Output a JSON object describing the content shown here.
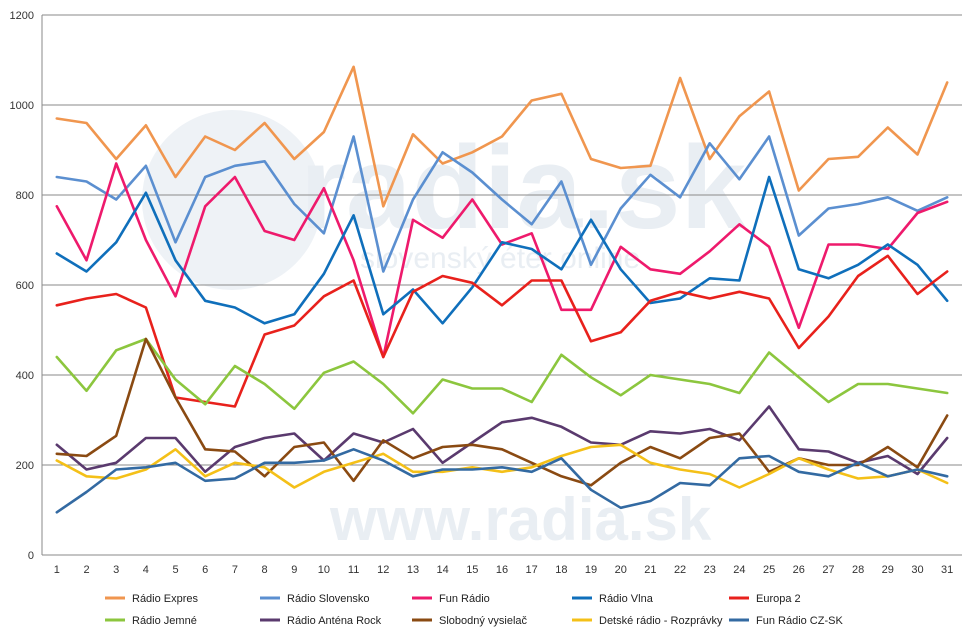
{
  "watermark": {
    "brand": "radia.sk",
    "tagline": "slovenský éter online",
    "bottom_text": "www.radia.sk"
  },
  "chart_data": {
    "type": "line",
    "title": "",
    "xlabel": "",
    "ylabel": "",
    "x": [
      1,
      2,
      3,
      4,
      5,
      6,
      7,
      8,
      9,
      10,
      11,
      12,
      13,
      14,
      15,
      16,
      17,
      18,
      19,
      20,
      21,
      22,
      23,
      24,
      25,
      26,
      27,
      28,
      29,
      30,
      31
    ],
    "ylim": [
      0,
      1200
    ],
    "yticks": [
      0,
      200,
      400,
      600,
      800,
      1000,
      1200
    ],
    "grid": "horizontal",
    "legend_position": "bottom",
    "series": [
      {
        "name": "Rádio Expres",
        "color": "#f0964f",
        "values": [
          970,
          960,
          880,
          955,
          840,
          930,
          900,
          960,
          880,
          940,
          1085,
          775,
          935,
          870,
          895,
          930,
          1010,
          1025,
          880,
          860,
          865,
          1060,
          880,
          975,
          1030,
          810,
          880,
          885,
          950,
          890,
          1050
        ]
      },
      {
        "name": "Rádio Slovensko",
        "color": "#5b8fd0",
        "values": [
          840,
          830,
          790,
          865,
          695,
          840,
          865,
          875,
          780,
          715,
          930,
          630,
          790,
          895,
          850,
          790,
          735,
          830,
          645,
          770,
          845,
          795,
          915,
          835,
          930,
          710,
          770,
          780,
          795,
          765,
          795
        ]
      },
      {
        "name": "Fun Rádio",
        "color": "#ee1a6c",
        "values": [
          775,
          655,
          870,
          700,
          575,
          775,
          840,
          720,
          700,
          815,
          655,
          440,
          745,
          705,
          790,
          690,
          715,
          545,
          545,
          685,
          635,
          625,
          675,
          735,
          685,
          505,
          690,
          690,
          680,
          760,
          785
        ]
      },
      {
        "name": "Rádio Vlna",
        "color": "#0f6fbb",
        "values": [
          670,
          630,
          695,
          805,
          655,
          565,
          550,
          515,
          535,
          625,
          755,
          535,
          590,
          515,
          595,
          695,
          680,
          635,
          745,
          635,
          560,
          570,
          615,
          610,
          840,
          635,
          615,
          645,
          690,
          645,
          565
        ]
      },
      {
        "name": "Europa 2",
        "color": "#e8211c",
        "values": [
          555,
          570,
          580,
          550,
          350,
          340,
          330,
          490,
          510,
          575,
          610,
          440,
          585,
          620,
          605,
          555,
          610,
          610,
          475,
          495,
          565,
          585,
          570,
          585,
          570,
          460,
          530,
          620,
          665,
          580,
          630
        ]
      },
      {
        "name": "Rádio Jemné",
        "color": "#8cc63e",
        "values": [
          440,
          365,
          455,
          480,
          390,
          335,
          420,
          380,
          325,
          405,
          430,
          380,
          315,
          390,
          370,
          370,
          340,
          445,
          395,
          355,
          400,
          390,
          380,
          360,
          450,
          395,
          340,
          380,
          380,
          370,
          360
        ]
      },
      {
        "name": "Rádio Anténa Rock",
        "color": "#5a3a6e",
        "values": [
          245,
          190,
          205,
          260,
          260,
          185,
          240,
          260,
          270,
          210,
          270,
          250,
          280,
          205,
          250,
          295,
          305,
          285,
          250,
          245,
          275,
          270,
          280,
          255,
          330,
          235,
          230,
          205,
          220,
          180,
          260
        ]
      },
      {
        "name": "Slobodný vysielač",
        "color": "#8a4a12",
        "values": [
          225,
          220,
          265,
          480,
          350,
          235,
          230,
          175,
          240,
          250,
          165,
          255,
          215,
          240,
          245,
          235,
          205,
          175,
          155,
          205,
          240,
          215,
          260,
          270,
          185,
          215,
          200,
          200,
          240,
          195,
          310
        ]
      },
      {
        "name": "Detské rádio - Rozprávky",
        "color": "#f4c018",
        "values": [
          210,
          175,
          170,
          190,
          235,
          175,
          205,
          195,
          150,
          185,
          205,
          225,
          185,
          185,
          195,
          185,
          195,
          220,
          240,
          245,
          205,
          190,
          180,
          150,
          180,
          215,
          190,
          170,
          175,
          190,
          160
        ]
      },
      {
        "name": "Fun Rádio CZ-SK",
        "color": "#336aa2",
        "values": [
          95,
          140,
          190,
          195,
          205,
          165,
          170,
          205,
          205,
          210,
          235,
          210,
          175,
          190,
          190,
          195,
          185,
          215,
          145,
          105,
          120,
          160,
          155,
          215,
          220,
          185,
          175,
          205,
          175,
          190,
          175
        ]
      }
    ]
  }
}
